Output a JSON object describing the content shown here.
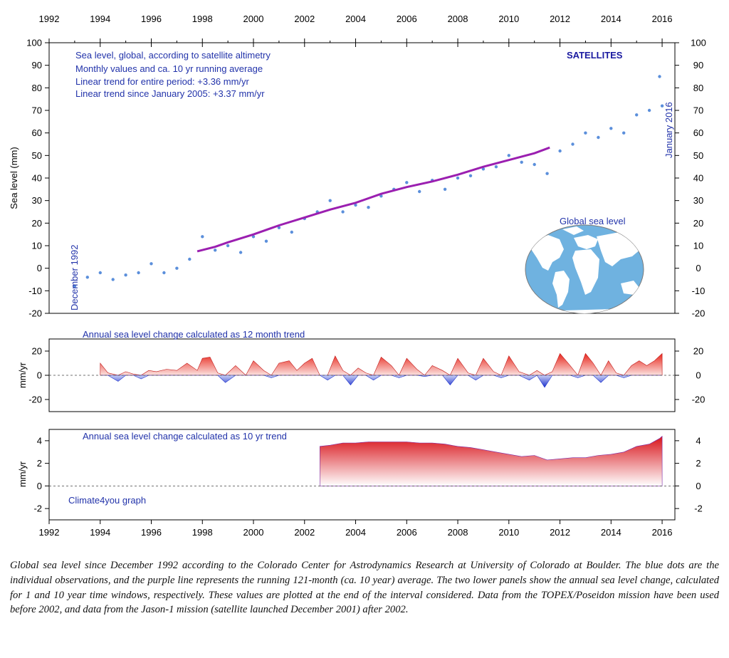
{
  "caption": "Global sea level since December 1992 according to the Colorado Center for Astrodynamics Research at University of Colorado at Boulder. The blue dots are the individual observations, and the purple line represents the running 121-month (ca. 10 year) average. The two lower panels show the annual sea level change, calculated for 1 and 10 year time windows, respectively. These values are plotted at the end of the interval considered. Data from the TOPEX/Poseidon mission have been used before 2002, and data from the Jason-1 mission (satellite launched December 2001) after 2002.",
  "colors": {
    "dots": "#5b8fdb",
    "running_average": "#9b1fb0",
    "positive_fill": "#e8281e",
    "negative_fill": "#1a2fcc",
    "annotation_text": "#2233aa",
    "map_ocean": "#6fb2e0"
  },
  "chart_data": [
    {
      "type": "scatter",
      "ylabel": "Sea level (mm)",
      "xlim": [
        1992,
        2016.5
      ],
      "ylim": [
        -20,
        100
      ],
      "x_ticks": [
        1992,
        1994,
        1996,
        1998,
        2000,
        2002,
        2004,
        2006,
        2008,
        2010,
        2012,
        2014,
        2016
      ],
      "y_ticks": [
        -20,
        -10,
        0,
        10,
        20,
        30,
        40,
        50,
        60,
        70,
        80,
        90,
        100
      ],
      "annotations": {
        "line1": "Sea level, global, according to satellite altimetry",
        "line2": "Monthly values and ca. 10 yr running average",
        "line3": "Linear trend for entire period: +3.36 mm/yr",
        "line4": "Linear trend since January 2005: +3.37 mm/yr",
        "satellites": "SATELLITES",
        "start_label": "December 1992",
        "end_label": "January 2016",
        "map_label": "Global sea level"
      },
      "series": [
        {
          "name": "Monthly values",
          "trend_mm_per_yr": 3.36,
          "x": [
            1993.0,
            1993.5,
            1994.0,
            1994.5,
            1995.0,
            1995.5,
            1996.0,
            1996.5,
            1997.0,
            1997.5,
            1998.0,
            1998.5,
            1999.0,
            1999.5,
            2000.0,
            2000.5,
            2001.0,
            2001.5,
            2002.0,
            2002.5,
            2003.0,
            2003.5,
            2004.0,
            2004.5,
            2005.0,
            2005.5,
            2006.0,
            2006.5,
            2007.0,
            2007.5,
            2008.0,
            2008.5,
            2009.0,
            2009.5,
            2010.0,
            2010.5,
            2011.0,
            2011.5,
            2012.0,
            2012.5,
            2013.0,
            2013.5,
            2014.0,
            2014.5,
            2015.0,
            2015.5,
            2015.9,
            2016.0
          ],
          "y": [
            -8,
            -4,
            -2,
            -5,
            -3,
            -2,
            2,
            -2,
            0,
            4,
            14,
            8,
            10,
            7,
            14,
            12,
            18,
            16,
            22,
            25,
            30,
            25,
            28,
            27,
            32,
            35,
            38,
            34,
            39,
            35,
            40,
            41,
            44,
            45,
            50,
            47,
            46,
            42,
            52,
            55,
            60,
            58,
            62,
            60,
            68,
            70,
            85,
            72
          ]
        },
        {
          "name": "121-month running average",
          "x": [
            1997.8,
            1998.5,
            1999.0,
            2000.0,
            2001.0,
            2002.0,
            2003.0,
            2004.0,
            2005.0,
            2006.0,
            2007.0,
            2008.0,
            2009.0,
            2010.0,
            2011.0,
            2011.6
          ],
          "y": [
            7.5,
            9.5,
            11.5,
            15,
            19,
            22.5,
            26,
            29,
            33,
            36,
            38.5,
            41.5,
            45,
            48,
            51,
            53.5
          ]
        }
      ]
    },
    {
      "type": "area",
      "title": "Annual sea level change calculated as 12 month trend",
      "ylabel": "mm/yr",
      "xlim": [
        1992,
        2016.5
      ],
      "ylim": [
        -30,
        30
      ],
      "y_ticks": [
        -20,
        0,
        20
      ],
      "x": [
        1994.0,
        1994.3,
        1994.7,
        1995.0,
        1995.3,
        1995.6,
        1995.9,
        1996.2,
        1996.6,
        1997.0,
        1997.4,
        1997.8,
        1998.0,
        1998.3,
        1998.6,
        1998.9,
        1999.3,
        1999.7,
        2000.0,
        2000.4,
        2000.7,
        2001.0,
        2001.4,
        2001.7,
        2002.0,
        2002.3,
        2002.6,
        2002.9,
        2003.2,
        2003.5,
        2003.8,
        2004.1,
        2004.4,
        2004.7,
        2005.0,
        2005.4,
        2005.7,
        2006.0,
        2006.4,
        2006.7,
        2007.0,
        2007.4,
        2007.7,
        2008.0,
        2008.4,
        2008.7,
        2009.0,
        2009.4,
        2009.7,
        2010.0,
        2010.4,
        2010.8,
        2011.1,
        2011.4,
        2011.7,
        2012.0,
        2012.4,
        2012.7,
        2013.0,
        2013.3,
        2013.6,
        2013.9,
        2014.2,
        2014.5,
        2014.8,
        2015.1,
        2015.4,
        2015.7,
        2016.0
      ],
      "values": [
        10,
        2,
        -5,
        3,
        1,
        -3,
        4,
        3,
        5,
        4,
        10,
        4,
        14,
        15,
        2,
        -6,
        8,
        0,
        12,
        4,
        -2,
        10,
        12,
        4,
        10,
        14,
        0,
        -4,
        16,
        4,
        -8,
        6,
        2,
        -4,
        15,
        8,
        -2,
        14,
        5,
        -1,
        8,
        4,
        -8,
        14,
        2,
        -4,
        14,
        3,
        -2,
        16,
        3,
        -4,
        4,
        -10,
        3,
        18,
        8,
        -2,
        18,
        10,
        -6,
        12,
        2,
        -2,
        8,
        12,
        8,
        12,
        18
      ]
    },
    {
      "type": "area",
      "title": "Annual sea level change calculated as 10 yr trend",
      "ylabel": "mm/yr",
      "xlim": [
        1992,
        2016.5
      ],
      "ylim": [
        -3,
        5
      ],
      "y_ticks": [
        -2,
        0,
        2,
        4
      ],
      "credit": "Climate4you graph",
      "x": [
        2002.6,
        2003.0,
        2003.5,
        2004.0,
        2004.5,
        2005.0,
        2005.5,
        2006.0,
        2006.5,
        2007.0,
        2007.5,
        2008.0,
        2008.5,
        2009.0,
        2009.5,
        2010.0,
        2010.5,
        2011.0,
        2011.5,
        2012.0,
        2012.5,
        2013.0,
        2013.5,
        2014.0,
        2014.5,
        2015.0,
        2015.5,
        2015.9,
        2016.0
      ],
      "values": [
        3.5,
        3.6,
        3.8,
        3.8,
        3.9,
        3.9,
        3.9,
        3.9,
        3.8,
        3.8,
        3.7,
        3.5,
        3.4,
        3.2,
        3.0,
        2.8,
        2.6,
        2.7,
        2.3,
        2.4,
        2.5,
        2.5,
        2.7,
        2.8,
        3.0,
        3.5,
        3.7,
        4.2,
        4.4
      ]
    }
  ]
}
